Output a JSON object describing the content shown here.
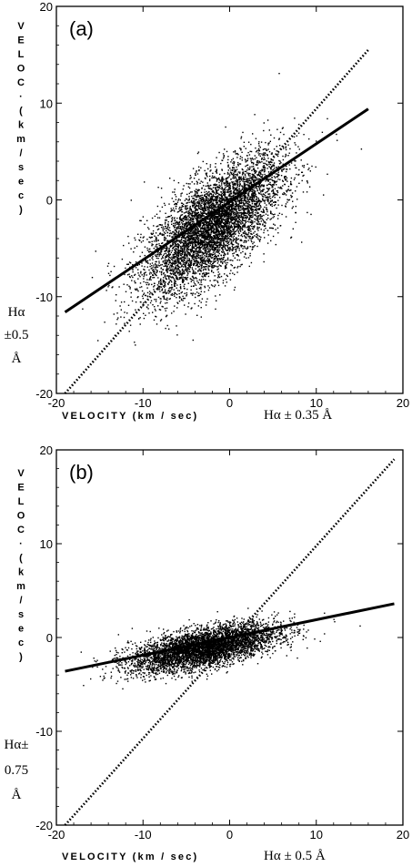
{
  "chart_data": [
    {
      "type": "scatter",
      "panel_label": "(a)",
      "xlim": [
        -20,
        20
      ],
      "ylim": [
        -20,
        20
      ],
      "xticks": [
        "-20",
        "-10",
        "0",
        "10",
        "20"
      ],
      "yticks": [
        "20",
        "10",
        "0",
        "-10",
        "-20"
      ],
      "ylabel_letters": [
        "V",
        "E",
        "L",
        "O",
        "C",
        "·",
        "(",
        "k",
        "m",
        "/",
        "s",
        "e",
        "c",
        ")"
      ],
      "ylabel_tail": [
        "Hα",
        "±0.5",
        "Å"
      ],
      "xlabel_main": "VELOCITY (km / sec)",
      "xlabel_tail": "Hα ± 0.35 Å",
      "scatter_model": {
        "x_center": -2,
        "x_sd": 4,
        "slope": 0.6,
        "intercept": -1.4,
        "y_sd": 2.6,
        "n_points": 6000
      },
      "series": [
        {
          "style": "solid",
          "points": [
            [
              -19,
              -11.6
            ],
            [
              16,
              9.4
            ]
          ]
        },
        {
          "style": "dotted",
          "points": [
            [
              -19,
              -20
            ],
            [
              16,
              15.5
            ]
          ]
        }
      ]
    },
    {
      "type": "scatter",
      "panel_label": "(b)",
      "xlim": [
        -20,
        20
      ],
      "ylim": [
        -20,
        20
      ],
      "xticks": [
        "-20",
        "-10",
        "0",
        "10",
        "20"
      ],
      "yticks": [
        "20",
        "10",
        "0",
        "-10",
        "-20"
      ],
      "ylabel_letters": [
        "V",
        "E",
        "L",
        "O",
        "C",
        "·",
        "(",
        "k",
        "m",
        "/",
        "s",
        "e",
        "c",
        ")"
      ],
      "ylabel_tail": [
        "Hα±",
        "0.75",
        "Å"
      ],
      "xlabel_main": "VELOCITY (km / sec)",
      "xlabel_tail": "Hα ± 0.5 Å",
      "scatter_model": {
        "x_center": -3,
        "x_sd": 4.2,
        "slope": 0.18,
        "intercept": -0.5,
        "y_sd": 1.0,
        "n_points": 5000
      },
      "series": [
        {
          "style": "solid",
          "points": [
            [
              -19,
              -3.6
            ],
            [
              19,
              3.6
            ]
          ]
        },
        {
          "style": "dotted",
          "points": [
            [
              -19,
              -20
            ],
            [
              19,
              19
            ]
          ]
        }
      ]
    }
  ]
}
